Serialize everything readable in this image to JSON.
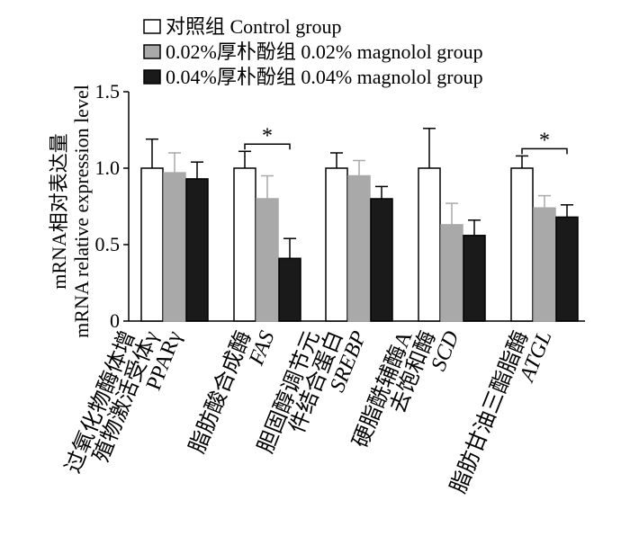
{
  "chart_data": {
    "type": "bar",
    "ylabel_cn": "mRNA相对表达量",
    "ylabel_en": "mRNA relative expression level",
    "ylim": [
      0,
      1.5
    ],
    "yticks": [
      "0",
      "0.5",
      "1.0",
      "1.5"
    ],
    "ytick_values": [
      0,
      0.5,
      1.0,
      1.5
    ],
    "legend_position": "top",
    "categories": [
      {
        "cn": [
          "过氧化物酶体增",
          "殖物激活受体γ"
        ],
        "en": "PPARγ"
      },
      {
        "cn": [
          "脂肪酸合成酶"
        ],
        "en": "FAS"
      },
      {
        "cn": [
          "胆固醇调节元",
          "件结合蛋白"
        ],
        "en": "SREBP"
      },
      {
        "cn": [
          "硬脂酰辅酶A",
          "去饱和酶"
        ],
        "en": "SCD"
      },
      {
        "cn": [
          "脂肪甘油三酯脂酶"
        ],
        "en": "ATGL"
      }
    ],
    "series": [
      {
        "name": "对照组 Control group",
        "color": "#ffffff",
        "values": [
          1.0,
          1.0,
          1.0,
          1.0,
          1.0
        ],
        "errors": [
          0.19,
          0.11,
          0.1,
          0.26,
          0.08
        ]
      },
      {
        "name": "0.02%厚朴酚组 0.02% magnolol group",
        "color": "#a9a9a9",
        "values": [
          0.97,
          0.8,
          0.95,
          0.63,
          0.74
        ],
        "errors": [
          0.13,
          0.15,
          0.1,
          0.14,
          0.08
        ]
      },
      {
        "name": "0.04%厚朴酚组 0.04% magnolol group",
        "color": "#1a1a1a",
        "values": [
          0.93,
          0.41,
          0.8,
          0.56,
          0.68
        ],
        "errors": [
          0.11,
          0.13,
          0.08,
          0.1,
          0.08
        ]
      }
    ],
    "annotations": [
      {
        "category_index": 1,
        "from_series": 0,
        "to_series": 2,
        "label": "*"
      },
      {
        "category_index": 4,
        "from_series": 0,
        "to_series": 2,
        "label": "*"
      }
    ]
  }
}
